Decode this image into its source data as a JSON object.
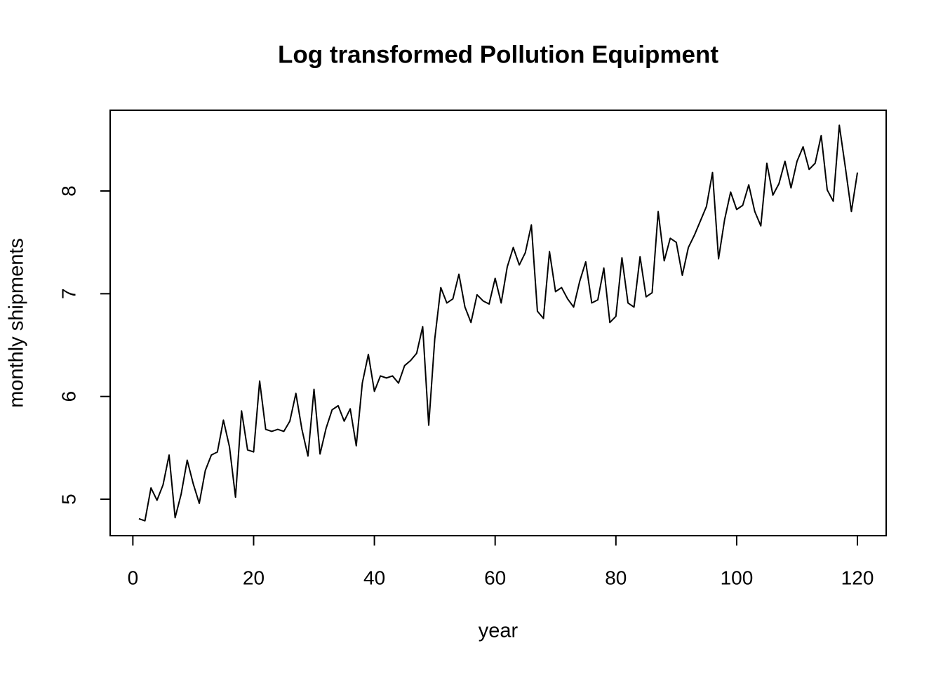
{
  "chart_data": {
    "type": "line",
    "title": "Log transformed Pollution Equipment",
    "xlabel": "year",
    "ylabel": "monthly shipments",
    "x": [
      1,
      2,
      3,
      4,
      5,
      6,
      7,
      8,
      9,
      10,
      11,
      12,
      13,
      14,
      15,
      16,
      17,
      18,
      19,
      20,
      21,
      22,
      23,
      24,
      25,
      26,
      27,
      28,
      29,
      30,
      31,
      32,
      33,
      34,
      35,
      36,
      37,
      38,
      39,
      40,
      41,
      42,
      43,
      44,
      45,
      46,
      47,
      48,
      49,
      50,
      51,
      52,
      53,
      54,
      55,
      56,
      57,
      58,
      59,
      60,
      61,
      62,
      63,
      64,
      65,
      66,
      67,
      68,
      69,
      70,
      71,
      72,
      73,
      74,
      75,
      76,
      77,
      78,
      79,
      80,
      81,
      82,
      83,
      84,
      85,
      86,
      87,
      88,
      89,
      90,
      91,
      92,
      93,
      94,
      95,
      96,
      97,
      98,
      99,
      100,
      101,
      102,
      103,
      104,
      105,
      106,
      107,
      108,
      109,
      110,
      111,
      112,
      113,
      114,
      115,
      116,
      117,
      118,
      119,
      120
    ],
    "series": [
      {
        "color": "#000000",
        "values": [
          4.81,
          4.79,
          5.11,
          4.99,
          5.14,
          5.43,
          4.82,
          5.05,
          5.38,
          5.15,
          4.96,
          5.28,
          5.43,
          5.46,
          5.77,
          5.51,
          5.02,
          5.86,
          5.48,
          5.46,
          6.15,
          5.68,
          5.66,
          5.68,
          5.66,
          5.76,
          6.03,
          5.68,
          5.42,
          6.07,
          5.44,
          5.69,
          5.87,
          5.91,
          5.76,
          5.88,
          5.52,
          6.13,
          6.41,
          6.05,
          6.2,
          6.18,
          6.2,
          6.13,
          6.3,
          6.35,
          6.42,
          6.68,
          5.72,
          6.56,
          7.06,
          6.91,
          6.95,
          7.19,
          6.87,
          6.72,
          6.99,
          6.93,
          6.9,
          7.15,
          6.91,
          7.26,
          7.45,
          7.28,
          7.4,
          7.67,
          6.83,
          6.76,
          7.41,
          7.02,
          7.06,
          6.95,
          6.87,
          7.12,
          7.31,
          6.91,
          6.94,
          7.25,
          6.72,
          6.78,
          7.35,
          6.91,
          6.87,
          7.36,
          6.97,
          7.01,
          7.8,
          7.32,
          7.54,
          7.5,
          7.18,
          7.45,
          7.57,
          7.71,
          7.85,
          8.18,
          7.34,
          7.72,
          7.99,
          7.82,
          7.86,
          8.06,
          7.8,
          7.66,
          8.27,
          7.96,
          8.07,
          8.29,
          8.03,
          8.29,
          8.43,
          8.21,
          8.27,
          8.54,
          8.01,
          7.9,
          8.64,
          8.23,
          7.8,
          8.18
        ]
      }
    ],
    "xlim": [
      -3.76,
      124.76
    ],
    "ylim": [
      4.645,
      8.786
    ],
    "xticks": [
      0,
      20,
      40,
      60,
      80,
      100,
      120
    ],
    "yticks": [
      5,
      6,
      7,
      8
    ]
  }
}
